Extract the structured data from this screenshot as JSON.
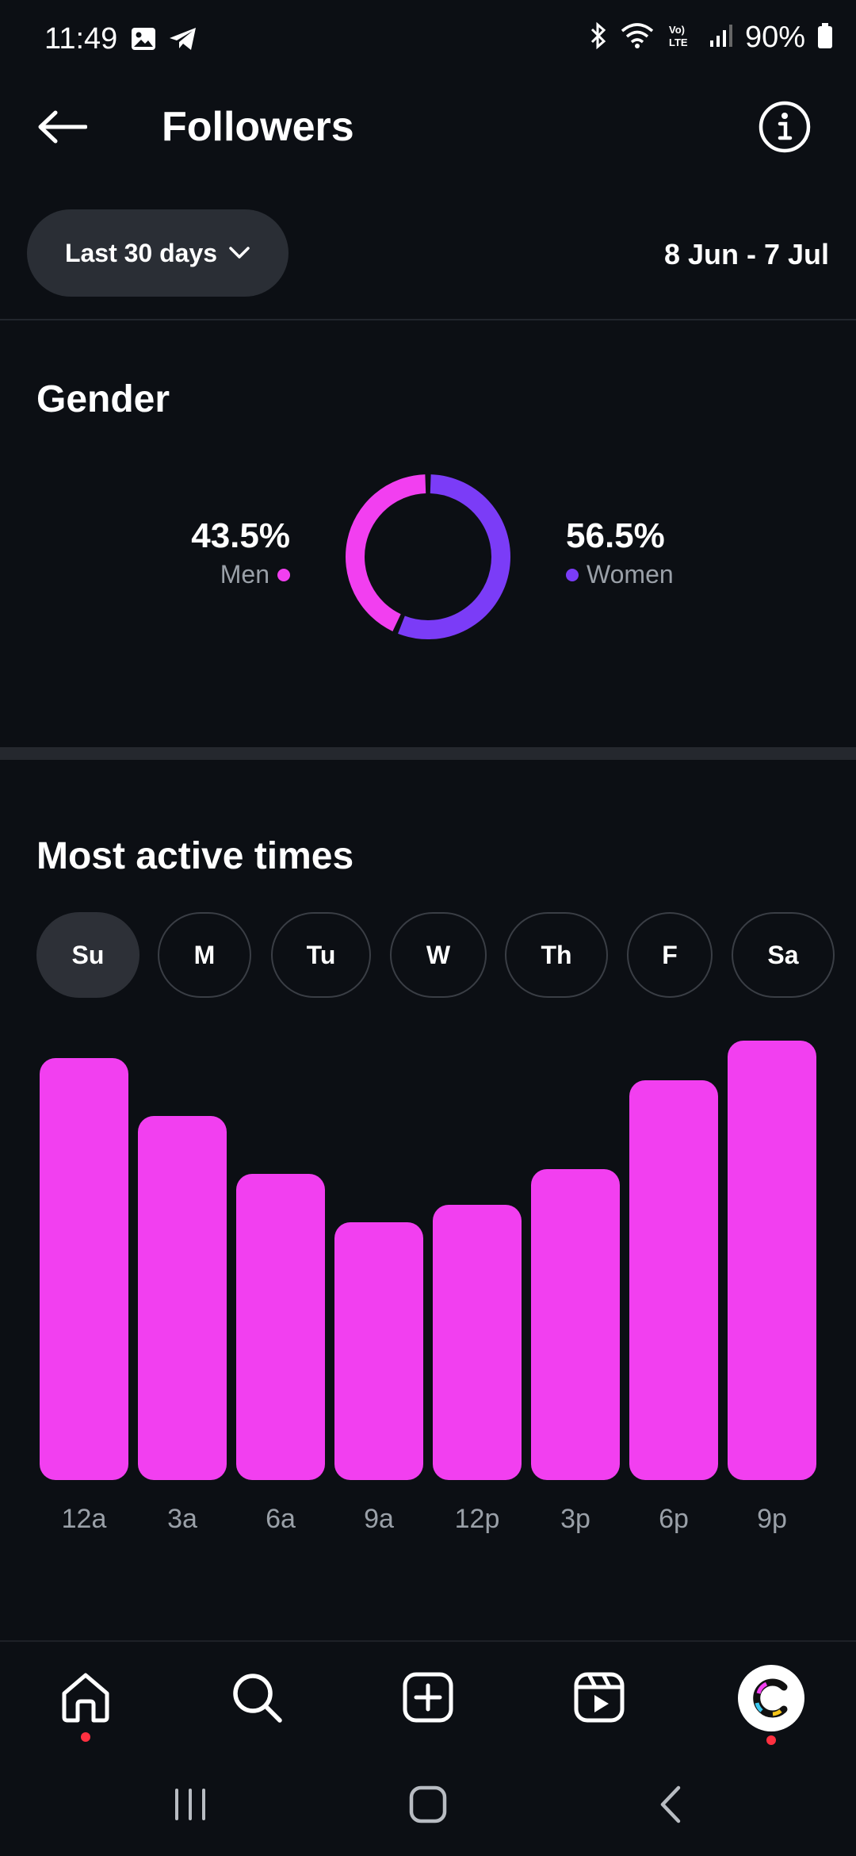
{
  "status_bar": {
    "time": "11:49",
    "battery": "90%",
    "icons": [
      "gallery-icon",
      "telegram-icon",
      "bluetooth-icon",
      "wifi-icon",
      "volte-icon",
      "signal-icon",
      "battery-icon"
    ]
  },
  "header": {
    "title": "Followers",
    "back_icon": "arrow-left-icon",
    "info_icon": "info-icon"
  },
  "filter": {
    "range_label": "Last 30 days",
    "date_range": "8 Jun - 7 Jul"
  },
  "gender": {
    "title": "Gender",
    "men": {
      "percent": "43.5%",
      "label": "Men",
      "value": 43.5,
      "color": "#f23ff0"
    },
    "women": {
      "percent": "56.5%",
      "label": "Women",
      "value": 56.5,
      "color": "#7b3cf7"
    }
  },
  "active_times": {
    "title": "Most active times",
    "days": [
      "Su",
      "M",
      "Tu",
      "W",
      "Th",
      "F",
      "Sa"
    ],
    "selected_day": "Su",
    "bar_color": "#f23ff0"
  },
  "chart_data": {
    "type": "bar",
    "categories": [
      "12a",
      "3a",
      "6a",
      "9a",
      "12p",
      "3p",
      "6p",
      "9p"
    ],
    "values": [
      95,
      82,
      69,
      58,
      62,
      70,
      90,
      99
    ],
    "ylim": [
      0,
      100
    ],
    "grid": false
  },
  "bottom_nav": {
    "items": [
      "home-icon",
      "search-icon",
      "create-icon",
      "reels-icon",
      "profile-avatar"
    ]
  },
  "system_nav": {
    "items": [
      "recents-icon",
      "home-button-icon",
      "back-icon"
    ]
  }
}
